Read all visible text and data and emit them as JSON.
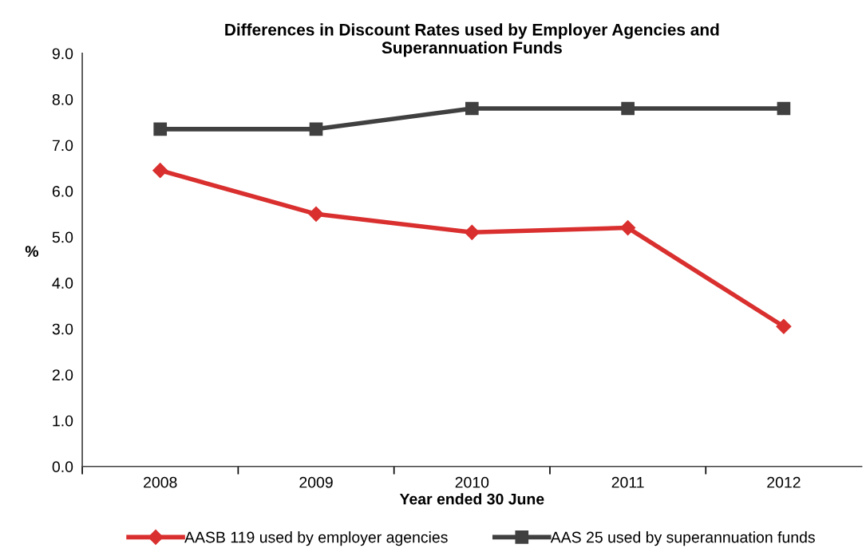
{
  "chart_data": {
    "type": "line",
    "title": "Differences in Discount Rates used by Employer Agencies and\nSuperannuation Funds",
    "xlabel": "Year ended 30 June",
    "ylabel": "%",
    "categories": [
      "2008",
      "2009",
      "2010",
      "2011",
      "2012"
    ],
    "series": [
      {
        "name": "AASB 119 used by employer agencies",
        "color": "#d9302f",
        "marker": "diamond",
        "values": [
          6.45,
          5.5,
          5.1,
          5.2,
          3.05
        ]
      },
      {
        "name": "AAS 25 used by superannuation funds",
        "color": "#404040",
        "marker": "square",
        "values": [
          7.35,
          7.35,
          7.8,
          7.8,
          7.8
        ]
      }
    ],
    "ylim": [
      0,
      9
    ],
    "yticks": [
      {
        "value": 0,
        "label": "0.0"
      },
      {
        "value": 1,
        "label": "1.0"
      },
      {
        "value": 2,
        "label": "2.0"
      },
      {
        "value": 3,
        "label": "3.0"
      },
      {
        "value": 4,
        "label": "4.0"
      },
      {
        "value": 5,
        "label": "5.0"
      },
      {
        "value": 6,
        "label": "6.0"
      },
      {
        "value": 7,
        "label": "7.0"
      },
      {
        "value": 8,
        "label": "8.0"
      },
      {
        "value": 9,
        "label": "9.0"
      }
    ],
    "grid": false,
    "legend": "bottom",
    "line_style": "solid"
  }
}
